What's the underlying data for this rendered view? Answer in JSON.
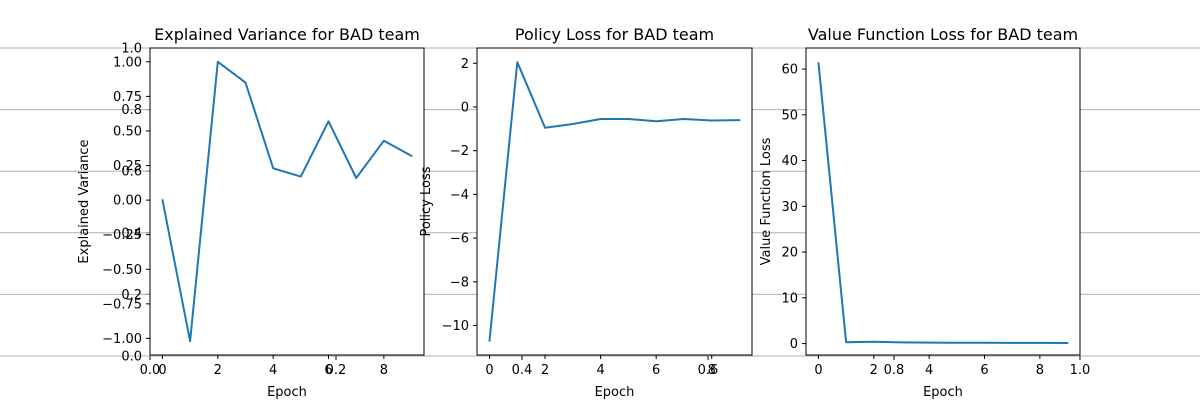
{
  "colors": {
    "line": "#1f77b4",
    "axis": "#000000",
    "background": "#ffffff",
    "ghost_grid": "#b0b0b0"
  },
  "background_axes": {
    "xticks": [
      0.0,
      0.2,
      0.4,
      0.6,
      0.8,
      1.0
    ],
    "xtick_labels": [
      "0.0",
      "0.2",
      "0.4",
      "0.6",
      "0.8",
      "1.0"
    ],
    "yticks": [
      0.0,
      0.2,
      0.4,
      0.6,
      0.8,
      1.0
    ],
    "ytick_labels": [
      "0.0",
      "0.2",
      "0.4",
      "0.6",
      "0.8",
      "1.0"
    ],
    "xlim": [
      0,
      1
    ],
    "ylim": [
      0,
      1
    ]
  },
  "chart_data": [
    {
      "type": "line",
      "title": "Explained Variance for BAD team",
      "xlabel": "Epoch",
      "ylabel": "Explained Variance",
      "x": [
        0,
        1,
        2,
        3,
        4,
        5,
        6,
        7,
        8,
        9
      ],
      "series": [
        {
          "values": [
            0.0,
            -1.02,
            1.0,
            0.85,
            0.23,
            0.17,
            0.57,
            0.16,
            0.43,
            0.32
          ]
        }
      ],
      "xlim": [
        -0.45,
        9.45
      ],
      "ylim": [
        -1.12,
        1.1
      ],
      "xticks": [
        0,
        2,
        4,
        6,
        8
      ],
      "xtick_labels": [
        "0",
        "2",
        "4",
        "6",
        "8"
      ],
      "yticks": [
        -1.0,
        -0.75,
        -0.5,
        -0.25,
        0.0,
        0.25,
        0.5,
        0.75,
        1.0
      ],
      "ytick_labels": [
        "−1.00",
        "−0.75",
        "−0.50",
        "−0.25",
        "0.00",
        "0.25",
        "0.50",
        "0.75",
        "1.00"
      ],
      "grid": false
    },
    {
      "type": "line",
      "title": "Policy Loss for BAD team",
      "xlabel": "Epoch",
      "ylabel": "Policy Loss",
      "x": [
        0,
        1,
        2,
        3,
        4,
        5,
        6,
        7,
        8,
        9
      ],
      "series": [
        {
          "values": [
            -10.7,
            2.05,
            -0.95,
            -0.78,
            -0.55,
            -0.55,
            -0.65,
            -0.55,
            -0.62,
            -0.6
          ]
        }
      ],
      "xlim": [
        -0.45,
        9.45
      ],
      "ylim": [
        -11.35,
        2.7
      ],
      "xticks": [
        0,
        2,
        4,
        6,
        8
      ],
      "xtick_labels": [
        "0",
        "2",
        "4",
        "6",
        "8"
      ],
      "yticks": [
        -10,
        -8,
        -6,
        -4,
        -2,
        0,
        2
      ],
      "ytick_labels": [
        "−10",
        "−8",
        "−6",
        "−4",
        "−2",
        "0",
        "2"
      ],
      "grid": false
    },
    {
      "type": "line",
      "title": "Value Function Loss for BAD team",
      "xlabel": "Epoch",
      "ylabel": "Value Function Loss",
      "x": [
        0,
        1,
        2,
        3,
        4,
        5,
        6,
        7,
        8,
        9
      ],
      "series": [
        {
          "values": [
            61.3,
            0.3,
            0.4,
            0.25,
            0.2,
            0.18,
            0.16,
            0.15,
            0.14,
            0.13
          ]
        }
      ],
      "xlim": [
        -0.45,
        9.45
      ],
      "ylim": [
        -2.5,
        64.6
      ],
      "xticks": [
        0,
        2,
        4,
        6,
        8
      ],
      "xtick_labels": [
        "0",
        "2",
        "4",
        "6",
        "8"
      ],
      "yticks": [
        0,
        10,
        20,
        30,
        40,
        50,
        60
      ],
      "ytick_labels": [
        "0",
        "10",
        "20",
        "30",
        "40",
        "50",
        "60"
      ],
      "grid": false
    }
  ]
}
